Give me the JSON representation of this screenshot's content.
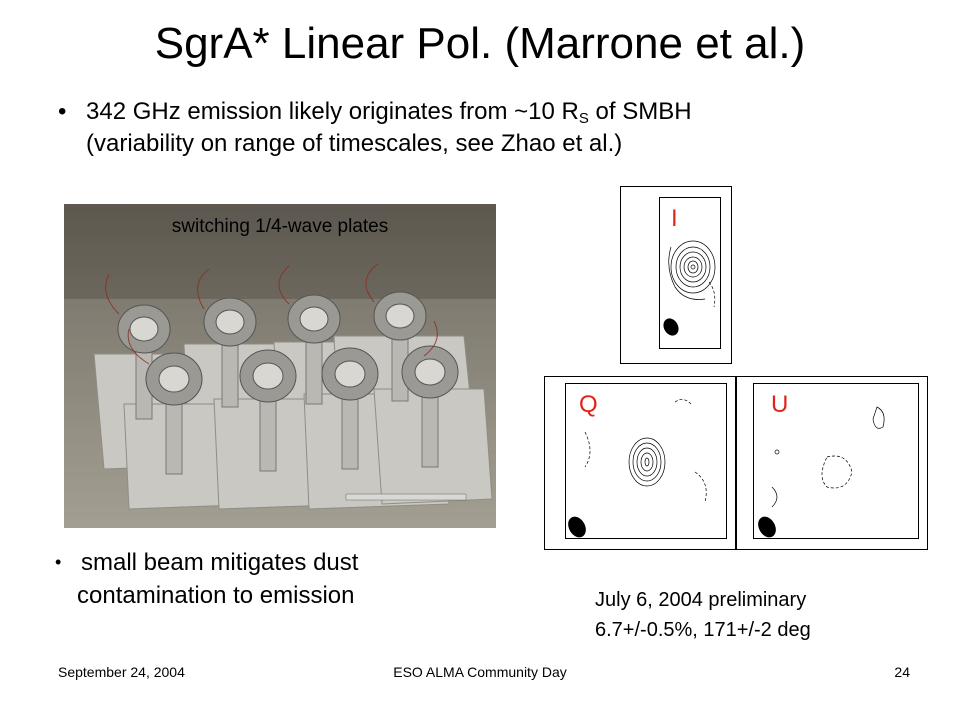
{
  "slide": {
    "title": "SgrA* Linear Pol. (Marrone et al.)",
    "bullet1_part1": "342 GHz emission likely originates from ~10 R",
    "bullet1_sub": "S",
    "bullet1_part2": " of SMBH",
    "bullet1_line2": "(variability on range of timescales, see Zhao et al.)",
    "bullet2_line1": "small beam mitigates dust",
    "bullet2_line2": "contamination to emission",
    "bullet_glyph": "•",
    "photo_caption": "switching 1/4-wave plates",
    "maps": {
      "i_label": "I",
      "q_label": "Q",
      "u_label": "U"
    },
    "caption_line1": "July 6, 2004 preliminary",
    "caption_line2": "6.7+/-0.5%,  171+/-2 deg"
  },
  "footer": {
    "date": "September 24, 2004",
    "event": "ESO ALMA Community Day",
    "page": "24"
  },
  "colors": {
    "map_label": "#e2231a",
    "background": "#ffffff"
  }
}
